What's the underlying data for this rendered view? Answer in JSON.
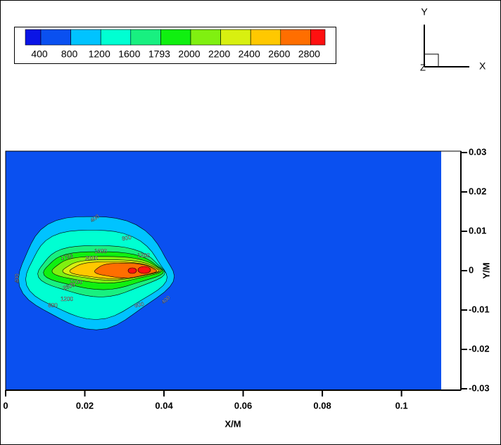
{
  "chart_data": {
    "type": "contour",
    "levels": [
      400,
      800,
      1200,
      1600,
      1793,
      2000,
      2200,
      2400,
      2600,
      2800
    ],
    "colors": [
      "#0a14e6",
      "#0a50f0",
      "#00c3ff",
      "#00ffd2",
      "#18f080",
      "#10f010",
      "#80f010",
      "#d8f010",
      "#ffc800",
      "#ff6e00",
      "#ff1010"
    ],
    "contour_labels": [
      400,
      800,
      1600,
      2000,
      1200,
      1793,
      2200,
      2600,
      1200,
      800,
      400,
      800,
      400
    ],
    "xlabel": "X/M",
    "ylabel": "Y/M",
    "xlim": [
      0,
      0.115
    ],
    "xticks": [
      0,
      0.02,
      0.04,
      0.06,
      0.08,
      0.1
    ],
    "ylim": [
      -0.03,
      0.03
    ],
    "yticks": [
      0.03,
      0.02,
      0.01,
      0,
      -0.01,
      -0.02,
      -0.03
    ],
    "axes_triad": [
      "X",
      "Y",
      "Z"
    ]
  }
}
